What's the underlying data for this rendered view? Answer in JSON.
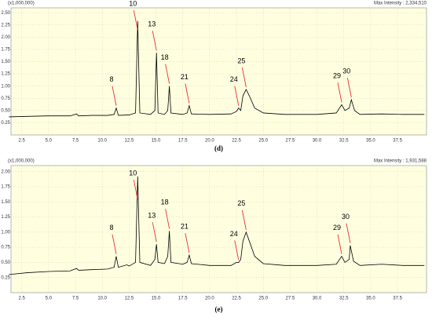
{
  "chart_data": [
    {
      "type": "line",
      "caption": "(d)",
      "y_unit_label": "(x1,000,000)",
      "max_intensity_label": "Max Intensity : 2,334,510",
      "xlim": [
        1.5,
        40.2
      ],
      "ylim": [
        0,
        2.6
      ],
      "grid": true,
      "background": "#ffffe0",
      "color": "#000000",
      "annotation_color": "#e53030",
      "xticks": [
        2.5,
        {
          "value": 5,
          "label": "5.0"
        },
        7.5,
        {
          "value": 10,
          "label": "10.0"
        },
        12.5,
        {
          "value": 15,
          "label": "15.0"
        },
        17.5,
        {
          "value": 20,
          "label": "20.0"
        },
        22.5,
        {
          "value": 25,
          "label": "25.0"
        },
        27.5,
        {
          "value": 30,
          "label": "30.0"
        },
        32.5,
        {
          "value": 35,
          "label": "35.0"
        },
        37.5
      ],
      "yticks": [
        0.25,
        {
          "value": 0.5,
          "label": "0.50"
        },
        0.75,
        {
          "value": 1,
          "label": "1.00"
        },
        1.25,
        {
          "value": 1.5,
          "label": "1.50"
        },
        1.75,
        {
          "value": 2,
          "label": "2.00"
        },
        2.25,
        {
          "value": 2.5,
          "label": "2.50"
        }
      ],
      "series": [
        {
          "x": [
            1.3,
            3,
            5,
            7,
            7.6,
            7.8,
            9,
            10.5,
            11.1,
            11.3,
            11.5,
            12.5,
            13.1,
            13.3,
            13.5,
            14.5,
            14.9,
            15.05,
            15.2,
            15.8,
            16.1,
            16.25,
            16.4,
            17.5,
            17.9,
            18.1,
            18.3,
            20,
            22,
            22.5,
            22.7,
            22.9,
            23.1,
            23.4,
            23.7,
            24.2,
            25,
            27,
            30,
            31.8,
            32.3,
            32.6,
            33,
            33.2,
            33.5,
            34,
            36,
            38,
            40
          ],
          "values": [
            0.37,
            0.38,
            0.39,
            0.39,
            0.43,
            0.39,
            0.4,
            0.4,
            0.42,
            0.55,
            0.4,
            0.41,
            0.45,
            2.33,
            0.45,
            0.42,
            0.5,
            1.68,
            0.45,
            0.42,
            0.5,
            1.0,
            0.45,
            0.42,
            0.45,
            0.6,
            0.43,
            0.42,
            0.43,
            0.48,
            0.55,
            0.5,
            0.8,
            0.93,
            0.8,
            0.55,
            0.45,
            0.42,
            0.42,
            0.45,
            0.62,
            0.5,
            0.55,
            0.72,
            0.5,
            0.42,
            0.43,
            0.42,
            0.42
          ]
        }
      ],
      "annotations": [
        {
          "text": "8",
          "x": 11.3,
          "y": 0.55
        },
        {
          "text": "10",
          "x": 13.3,
          "y": 2.1
        },
        {
          "text": "13",
          "x": 15.05,
          "y": 1.68
        },
        {
          "text": "18",
          "x": 16.25,
          "y": 1.0
        },
        {
          "text": "21",
          "x": 18.1,
          "y": 0.6
        },
        {
          "text": "24",
          "x": 22.7,
          "y": 0.55
        },
        {
          "text": "25",
          "x": 23.4,
          "y": 0.93
        },
        {
          "text": "29",
          "x": 32.3,
          "y": 0.62
        },
        {
          "text": "30",
          "x": 33.2,
          "y": 0.72
        }
      ]
    },
    {
      "type": "line",
      "caption": "(e)",
      "y_unit_label": "(x1,000,000)",
      "max_intensity_label": "Max Intensity : 1,931,588",
      "xlim": [
        1.5,
        40.2
      ],
      "ylim": [
        0,
        2.1
      ],
      "grid": true,
      "background": "#ffffe0",
      "color": "#000000",
      "annotation_color": "#e53030",
      "xticks": [
        2.5,
        {
          "value": 5,
          "label": "5.0"
        },
        7.5,
        {
          "value": 10,
          "label": "10.0"
        },
        12.5,
        {
          "value": 15,
          "label": "15.0"
        },
        17.5,
        {
          "value": 20,
          "label": "20.0"
        },
        22.5,
        {
          "value": 25,
          "label": "25.0"
        },
        27.5,
        {
          "value": 30,
          "label": "30.0"
        },
        32.5,
        {
          "value": 35,
          "label": "35.0"
        },
        37.5
      ],
      "yticks": [
        0.25,
        {
          "value": 0.5,
          "label": "0.50"
        },
        0.75,
        {
          "value": 1,
          "label": "1.00"
        },
        1.25,
        {
          "value": 1.5,
          "label": "1.50"
        },
        1.75,
        {
          "value": 2,
          "label": "2.00"
        }
      ],
      "series": [
        {
          "x": [
            1.3,
            3,
            5,
            7,
            7.6,
            7.8,
            9,
            10.5,
            11.1,
            11.3,
            11.5,
            12.3,
            12.5,
            13.1,
            13.3,
            13.5,
            14.5,
            14.9,
            15.05,
            15.2,
            15.8,
            16.1,
            16.25,
            16.4,
            17.5,
            17.9,
            18.1,
            18.3,
            20,
            22,
            22.5,
            22.7,
            22.9,
            23.1,
            23.4,
            23.7,
            24.2,
            25,
            27,
            30,
            31.8,
            32.3,
            32.6,
            33,
            33.1,
            33.4,
            34,
            36,
            38,
            40
          ],
          "values": [
            0.3,
            0.33,
            0.35,
            0.36,
            0.4,
            0.37,
            0.38,
            0.39,
            0.42,
            0.6,
            0.42,
            0.46,
            0.44,
            0.5,
            1.92,
            0.5,
            0.45,
            0.55,
            0.8,
            0.5,
            0.48,
            0.6,
            1.02,
            0.5,
            0.47,
            0.5,
            0.62,
            0.48,
            0.45,
            0.45,
            0.5,
            0.5,
            0.55,
            0.85,
            1.0,
            0.85,
            0.6,
            0.48,
            0.45,
            0.45,
            0.47,
            0.6,
            0.5,
            0.55,
            0.78,
            0.52,
            0.45,
            0.47,
            0.45,
            0.45
          ]
        }
      ],
      "annotations": [
        {
          "text": "8",
          "x": 11.3,
          "y": 0.6
        },
        {
          "text": "10",
          "x": 13.3,
          "y": 1.5
        },
        {
          "text": "13",
          "x": 15.05,
          "y": 0.8
        },
        {
          "text": "18",
          "x": 16.25,
          "y": 1.02
        },
        {
          "text": "21",
          "x": 18.1,
          "y": 0.62
        },
        {
          "text": "24",
          "x": 22.7,
          "y": 0.5
        },
        {
          "text": "25",
          "x": 23.4,
          "y": 1.0
        },
        {
          "text": "29",
          "x": 32.3,
          "y": 0.6
        },
        {
          "text": "30",
          "x": 33.1,
          "y": 0.78
        }
      ]
    }
  ]
}
